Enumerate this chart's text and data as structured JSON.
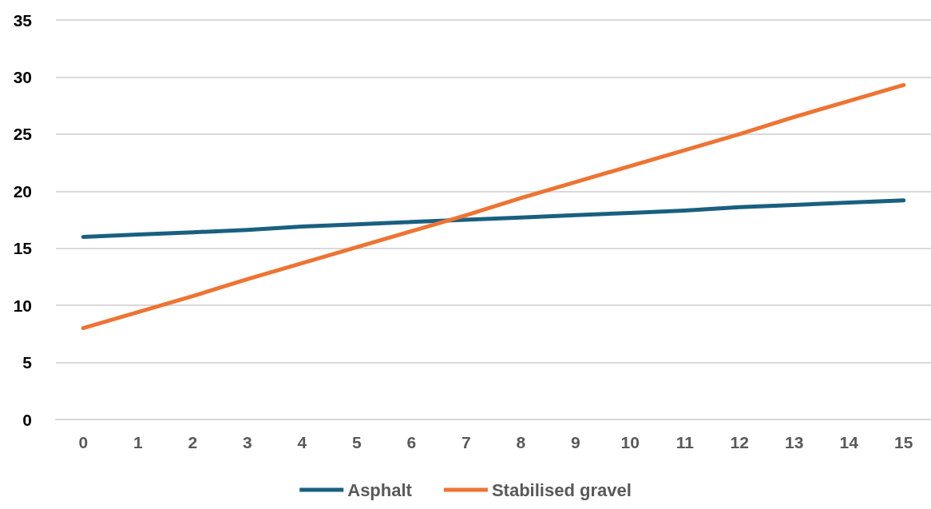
{
  "chart_data": {
    "type": "line",
    "x": [
      0,
      1,
      2,
      3,
      4,
      5,
      6,
      7,
      8,
      9,
      10,
      11,
      12,
      13,
      14,
      15
    ],
    "xlim": [
      -0.5,
      15.5
    ],
    "xticks": [
      0,
      1,
      2,
      3,
      4,
      5,
      6,
      7,
      8,
      9,
      10,
      11,
      12,
      13,
      14,
      15
    ],
    "series": [
      {
        "name": "Asphalt",
        "color": "#1a5f80",
        "values": [
          16,
          16.2,
          16.4,
          16.6,
          16.9,
          17.1,
          17.3,
          17.5,
          17.7,
          17.9,
          18.1,
          18.3,
          18.6,
          18.8,
          19.0,
          19.2
        ]
      },
      {
        "name": "Stabilised gravel",
        "color": "#ed7434",
        "values": [
          8,
          9.4,
          10.8,
          12.3,
          13.7,
          15.1,
          16.5,
          17.9,
          19.4,
          20.8,
          22.2,
          23.6,
          25.0,
          26.5,
          27.9,
          29.3
        ]
      }
    ],
    "ylim": [
      0,
      35
    ],
    "yticks": [
      0,
      5,
      10,
      15,
      20,
      25,
      30,
      35
    ],
    "grid": "y",
    "legend": "bottom",
    "marker": "none",
    "line_style": "solid"
  }
}
